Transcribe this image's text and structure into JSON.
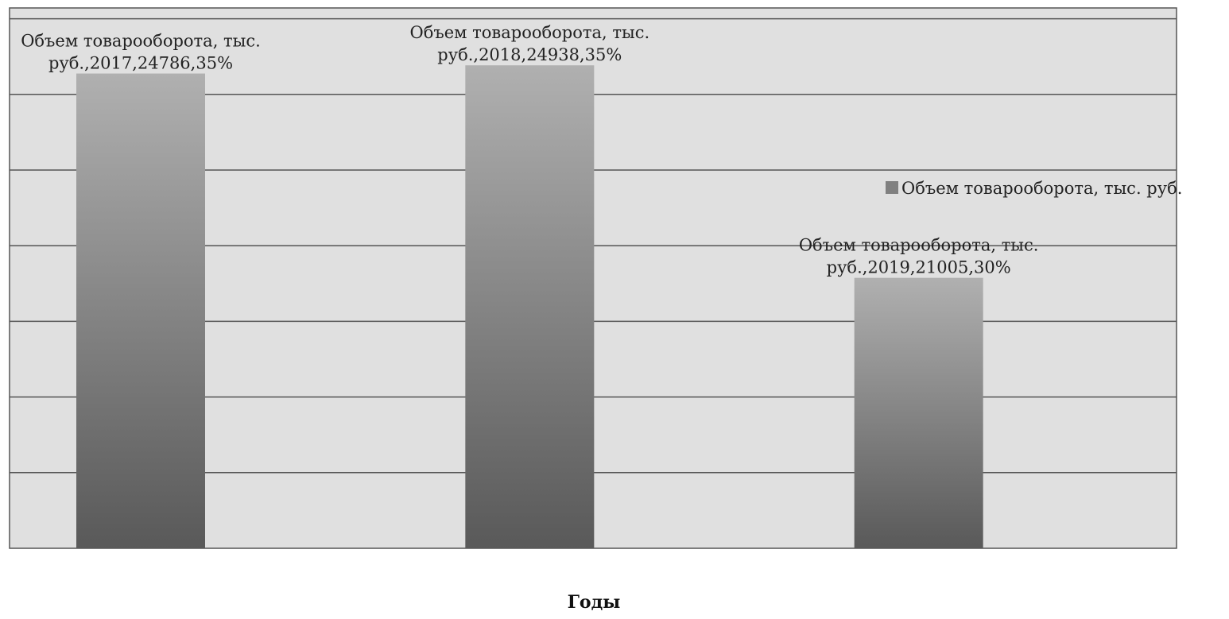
{
  "chart_data": {
    "type": "bar",
    "categories": [
      "2017",
      "2018",
      "2019"
    ],
    "series": [
      {
        "name": "Объем товарооборота, тыс. руб.",
        "values": [
          24786,
          24938,
          21005
        ],
        "percent": [
          "35%",
          "35%",
          "30%"
        ],
        "data_labels": [
          [
            "Объем товарооборота, тыс.",
            "руб.,2017,24786,35%"
          ],
          [
            "Объем товарооборота, тыс.",
            "руб.,2018,24938,35%"
          ],
          [
            "Объем товарооборота, тыс.",
            "руб.,2019,21005,30%"
          ]
        ]
      }
    ],
    "title": "",
    "xlabel": "Годы",
    "ylabel": "",
    "ylim": [
      16000,
      26000
    ],
    "gridlines": true,
    "grid_step": 1400,
    "legend": "right",
    "colors": {
      "plot_background": "#e0e0e0",
      "gridline": "#555555",
      "bar_top": "#b0b0b0",
      "bar_bottom": "#595959",
      "legend_marker": "#808080"
    }
  }
}
